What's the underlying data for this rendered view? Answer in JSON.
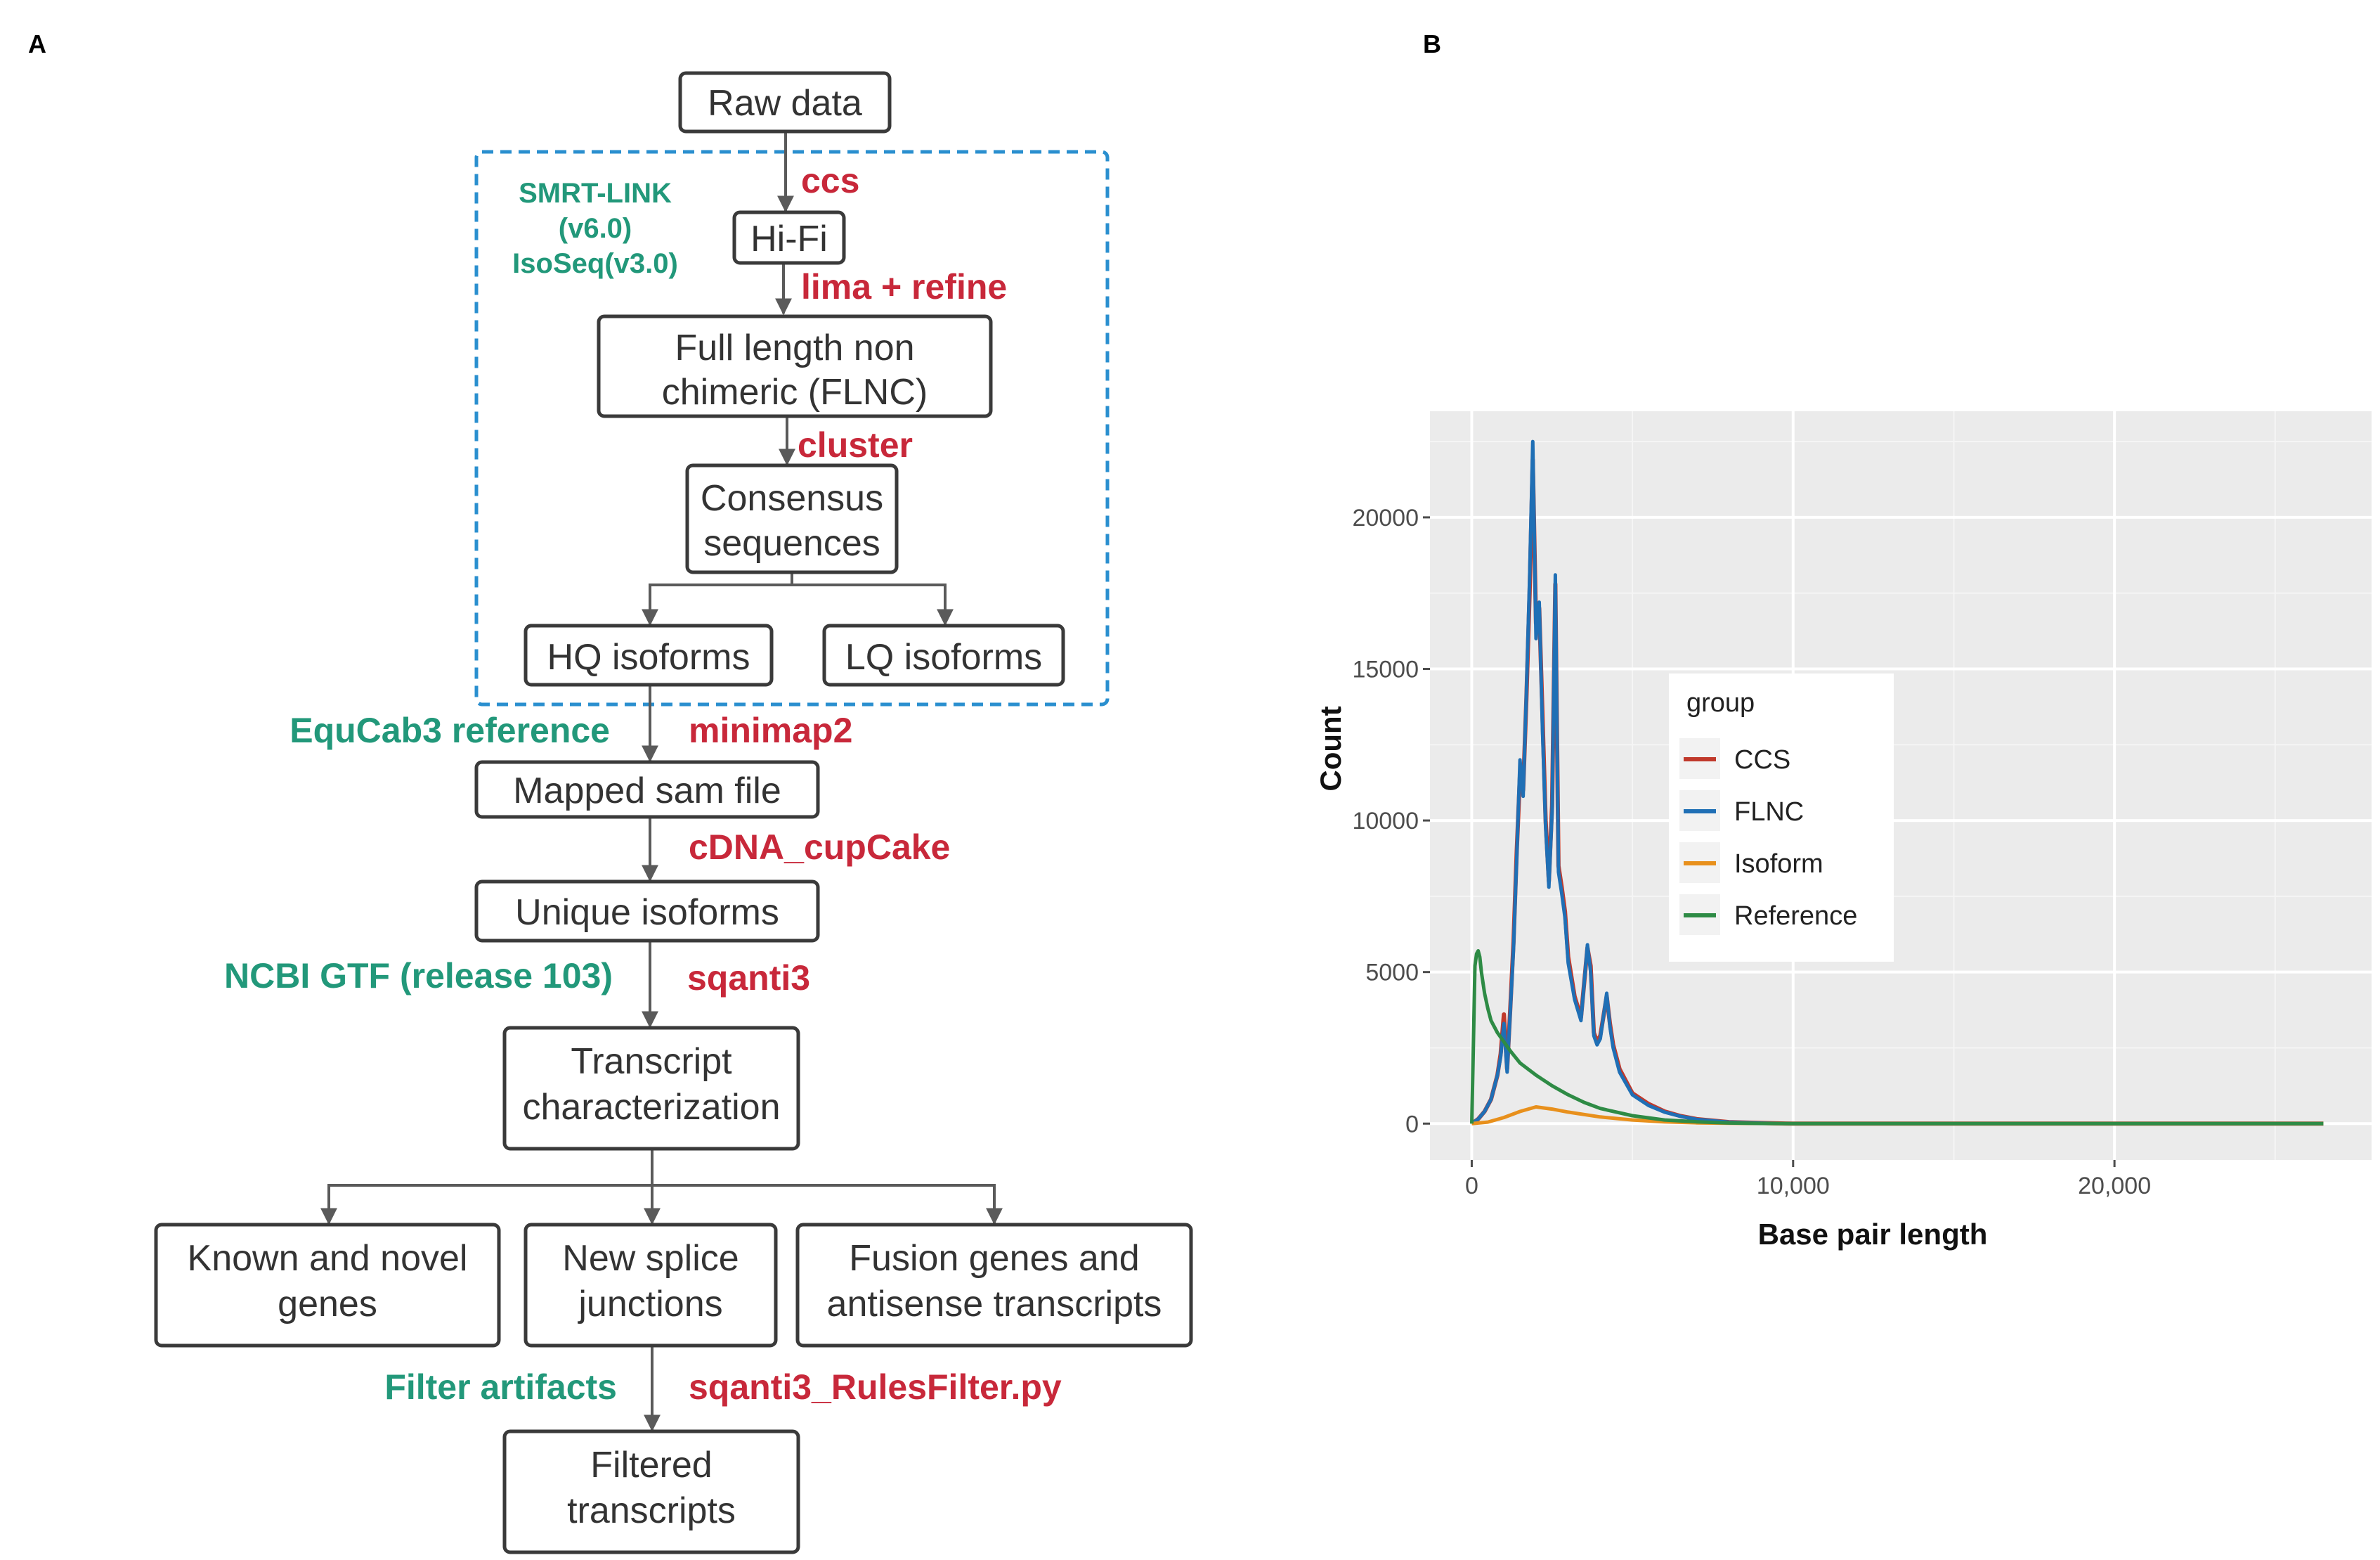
{
  "panels": {
    "a": "A",
    "b": "B"
  },
  "flowchart": {
    "raw_data": "Raw data",
    "hifi": "Hi-Fi",
    "flnc_line1": "Full length non",
    "flnc_line2": "chimeric (FLNC)",
    "consensus_line1": "Consensus",
    "consensus_line2": "sequences",
    "hq": "HQ isoforms",
    "lq": "LQ isoforms",
    "mapped": "Mapped sam file",
    "unique": "Unique isoforms",
    "transcript_line1": "Transcript",
    "transcript_line2": "characterization",
    "known_line1": "Known and novel",
    "known_line2": "genes",
    "splice_line1": "New splice",
    "splice_line2": "junctions",
    "fusion_line1": "Fusion genes and",
    "fusion_line2": "antisense transcripts",
    "filtered_line1": "Filtered",
    "filtered_line2": "transcripts"
  },
  "tools": {
    "ccs": "ccs",
    "lima": "lima + refine",
    "cluster": "cluster",
    "minimap2": "minimap2",
    "cupcake": "cDNA_cupCake",
    "sqanti3": "sqanti3",
    "rulesfilter": "sqanti3_RulesFilter.py"
  },
  "references": {
    "smrt_line1": "SMRT-LINK",
    "smrt_line2": "(v6.0)",
    "smrt_line3": "IsoSeq(v3.0)",
    "equcab": "EquCab3 reference",
    "ncbi": "NCBI GTF (release 103)",
    "filter": "Filter artifacts"
  },
  "colors": {
    "tool": "#c8283a",
    "reference": "#22987a",
    "dashed_box": "#2a8fcf",
    "CCS": "#c0392b",
    "FLNC": "#1f6fb5",
    "Isoform": "#e8901c",
    "Reference": "#2e8b45"
  },
  "chart_data": {
    "type": "line",
    "xlabel": "Base pair length",
    "ylabel": "Count",
    "xlim": [
      -1300,
      28000
    ],
    "ylim": [
      -1200,
      23500
    ],
    "xticks": [
      0,
      10000,
      20000
    ],
    "xtick_labels": [
      "0",
      "10,000",
      "20,000"
    ],
    "yticks": [
      0,
      5000,
      10000,
      15000,
      20000
    ],
    "ytick_labels": [
      "0",
      "5000",
      "10000",
      "15000",
      "20000"
    ],
    "legend_title": "group",
    "legend_position": "inside-center",
    "grid": true,
    "series": [
      {
        "name": "CCS",
        "x": [
          0,
          200,
          400,
          600,
          800,
          900,
          1000,
          1100,
          1200,
          1300,
          1400,
          1500,
          1600,
          1700,
          1800,
          1900,
          2000,
          2100,
          2200,
          2300,
          2400,
          2500,
          2600,
          2700,
          2800,
          2900,
          3000,
          3200,
          3400,
          3600,
          3700,
          3800,
          3900,
          4000,
          4200,
          4300,
          4400,
          4600,
          5000,
          5500,
          6000,
          6500,
          7000,
          8000,
          9000,
          10000,
          15000,
          20000,
          26500
        ],
        "values": [
          0,
          150,
          400,
          800,
          1600,
          2300,
          3600,
          1800,
          3800,
          6000,
          9000,
          11500,
          11000,
          14000,
          17500,
          21900,
          16500,
          17000,
          13500,
          10000,
          8000,
          10500,
          17800,
          8500,
          7800,
          7000,
          5500,
          4200,
          3500,
          5800,
          5200,
          3000,
          2700,
          2900,
          4200,
          3300,
          2600,
          1800,
          1000,
          650,
          400,
          250,
          150,
          50,
          20,
          0,
          0,
          0,
          0
        ]
      },
      {
        "name": "FLNC",
        "x": [
          0,
          200,
          400,
          600,
          800,
          900,
          1000,
          1100,
          1200,
          1300,
          1400,
          1500,
          1600,
          1700,
          1800,
          1900,
          2000,
          2100,
          2200,
          2300,
          2400,
          2500,
          2600,
          2700,
          2800,
          2900,
          3000,
          3200,
          3400,
          3600,
          3700,
          3800,
          3900,
          4000,
          4200,
          4300,
          4400,
          4600,
          5000,
          5500,
          6000,
          6500,
          7000,
          8000,
          9000,
          10000,
          15000,
          20000,
          26500
        ],
        "values": [
          0,
          150,
          400,
          800,
          1600,
          2200,
          3300,
          1700,
          3700,
          5800,
          8800,
          12000,
          10800,
          14200,
          18000,
          22500,
          16000,
          17200,
          13000,
          9800,
          7800,
          10300,
          18100,
          8300,
          7600,
          6800,
          5300,
          4100,
          3400,
          5900,
          5000,
          2900,
          2600,
          2800,
          4300,
          3200,
          2500,
          1700,
          950,
          600,
          380,
          240,
          140,
          45,
          15,
          0,
          0,
          0,
          0
        ]
      },
      {
        "name": "Isoform",
        "x": [
          0,
          500,
          1000,
          1500,
          2000,
          2500,
          3000,
          4000,
          5000,
          6000,
          7000,
          8000,
          10000,
          15000,
          20000,
          26500
        ],
        "values": [
          0,
          50,
          200,
          400,
          550,
          480,
          380,
          220,
          120,
          60,
          25,
          10,
          0,
          0,
          0,
          0
        ]
      },
      {
        "name": "Reference",
        "x": [
          0,
          50,
          100,
          150,
          200,
          250,
          300,
          400,
          500,
          600,
          800,
          1000,
          1200,
          1500,
          2000,
          2500,
          3000,
          3500,
          4000,
          5000,
          6000,
          7000,
          8000,
          9000,
          10000,
          15000,
          20000,
          26500
        ],
        "values": [
          0,
          2500,
          5200,
          5600,
          5700,
          5500,
          5000,
          4300,
          3800,
          3400,
          3000,
          2700,
          2400,
          2000,
          1600,
          1250,
          950,
          700,
          500,
          260,
          120,
          60,
          20,
          5,
          0,
          0,
          0,
          0
        ]
      }
    ]
  }
}
